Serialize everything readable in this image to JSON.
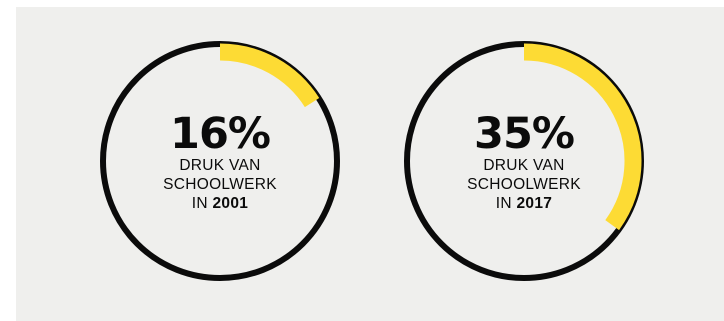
{
  "chart_data": [
    {
      "type": "pie",
      "value_percent": 16,
      "value_label": "16%",
      "caption_lines": [
        "DRUK VAN",
        "SCHOOLWERK"
      ],
      "year_prefix": "IN",
      "year": "2001"
    },
    {
      "type": "pie",
      "value_percent": 35,
      "value_label": "35%",
      "caption_lines": [
        "DRUK VAN",
        "SCHOOLWERK"
      ],
      "year_prefix": "IN",
      "year": "2017"
    }
  ],
  "colors": {
    "ring": "#0b0b0b",
    "highlight": "#fddb34",
    "background": "#efefed"
  }
}
